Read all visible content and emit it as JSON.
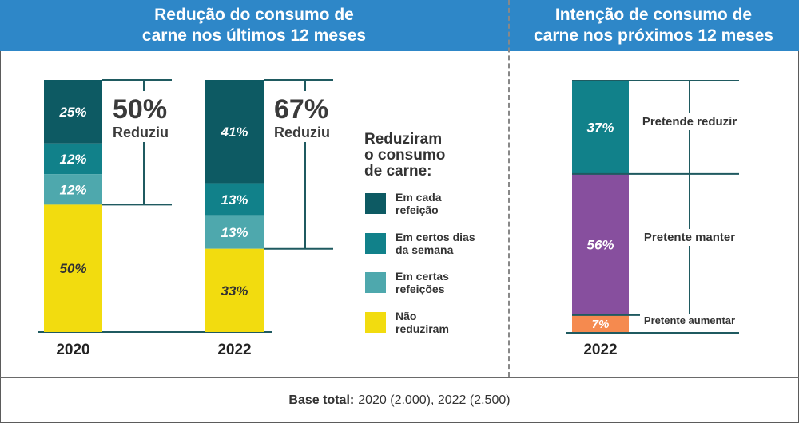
{
  "header": {
    "left_title": "Redução do consumo de\ncarne nos últimos 12 meses",
    "right_title": "Intenção de consumo de\ncarne nos próximos 12 meses"
  },
  "footer": {
    "label": "Base total:",
    "text": "2020 (2.000), 2022 (2.500)"
  },
  "chart_data": [
    {
      "type": "bar",
      "stacked": true,
      "categories": [
        "2020",
        "2022"
      ],
      "series": [
        {
          "name": "Em cada refeição",
          "values": [
            25,
            41
          ],
          "color": "#0d5a63"
        },
        {
          "name": "Em certos dias da semana",
          "values": [
            12,
            13
          ],
          "color": "#11818a"
        },
        {
          "name": "Em certas refeições",
          "values": [
            12,
            13
          ],
          "color": "#4ea8ad"
        },
        {
          "name": "Não reduziram",
          "values": [
            50,
            33
          ],
          "color": "#f2dc0f"
        }
      ],
      "data_labels": [
        [
          "25%",
          "12%",
          "12%",
          "50%"
        ],
        [
          "41%",
          "13%",
          "13%",
          "33%"
        ]
      ],
      "summary": [
        {
          "value": "50%",
          "label": "Reduziu"
        },
        {
          "value": "67%",
          "label": "Reduziu"
        }
      ],
      "legend_title": "Reduziram\no consumo\nde carne:",
      "legend_entries": [
        "Em cada\nrefeição",
        "Em certos dias\nda semana",
        "Em certas\nrefeições",
        "Não\nreduziram"
      ],
      "legend_placement": "right"
    },
    {
      "type": "bar",
      "stacked": true,
      "categories": [
        "2022"
      ],
      "series": [
        {
          "name": "Pretende reduzir",
          "values": [
            37
          ],
          "color": "#11818a"
        },
        {
          "name": "Pretente manter",
          "values": [
            56
          ],
          "color": "#874f9e"
        },
        {
          "name": "Pretente aumentar",
          "values": [
            7
          ],
          "color": "#f58a4f"
        }
      ],
      "data_labels": [
        [
          "37%",
          "56%",
          "7%"
        ]
      ],
      "segment_labels": [
        "Pretende reduzir",
        "Pretente manter",
        "Pretente aumentar"
      ]
    }
  ]
}
